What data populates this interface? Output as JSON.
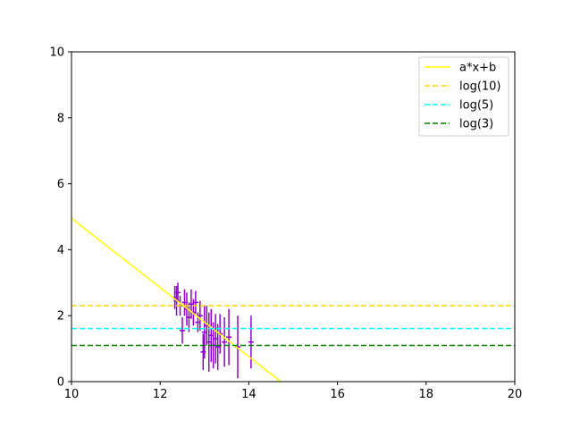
{
  "chart_data": {
    "type": "scatter",
    "title": "",
    "xlabel": "",
    "ylabel": "",
    "xlim": [
      10,
      20
    ],
    "ylim": [
      0,
      10
    ],
    "xticks": [
      10,
      12,
      14,
      16,
      18,
      20
    ],
    "yticks": [
      0,
      2,
      4,
      6,
      8,
      10
    ],
    "xtick_labels": [
      "10",
      "12",
      "14",
      "16",
      "18",
      "20"
    ],
    "ytick_labels": [
      "0",
      "2",
      "4",
      "6",
      "8",
      "10"
    ],
    "grid": false,
    "legend_position": "top-right",
    "series": [
      {
        "name": "a*x+b",
        "kind": "line",
        "style": "solid",
        "color": "#ffff00",
        "x": [
          10,
          14.72
        ],
        "y": [
          4.95,
          0
        ]
      },
      {
        "name": "log(10)",
        "kind": "hline",
        "style": "dashed",
        "color": "#ffd700",
        "y": 2.303
      },
      {
        "name": "log(5)",
        "kind": "hline",
        "style": "dashed",
        "color": "#00ffff",
        "y": 1.609
      },
      {
        "name": "log(3)",
        "kind": "hline",
        "style": "dashed",
        "color": "#008000",
        "y": 1.099
      }
    ],
    "errorbar_data": {
      "color": "#9400d3",
      "points": [
        {
          "x": 12.33,
          "y": 2.55,
          "err": 0.35
        },
        {
          "x": 12.37,
          "y": 2.45,
          "err": 0.45
        },
        {
          "x": 12.4,
          "y": 2.7,
          "err": 0.3
        },
        {
          "x": 12.45,
          "y": 2.3,
          "err": 0.3
        },
        {
          "x": 12.5,
          "y": 1.55,
          "err": 0.4
        },
        {
          "x": 12.55,
          "y": 2.4,
          "err": 0.4
        },
        {
          "x": 12.6,
          "y": 2.2,
          "err": 0.5
        },
        {
          "x": 12.65,
          "y": 1.95,
          "err": 0.45
        },
        {
          "x": 12.7,
          "y": 2.35,
          "err": 0.45
        },
        {
          "x": 12.75,
          "y": 2.1,
          "err": 0.4
        },
        {
          "x": 12.8,
          "y": 2.4,
          "err": 0.35
        },
        {
          "x": 12.85,
          "y": 1.8,
          "err": 0.3
        },
        {
          "x": 12.9,
          "y": 2.0,
          "err": 0.45
        },
        {
          "x": 12.97,
          "y": 0.9,
          "err": 0.55
        },
        {
          "x": 13.0,
          "y": 1.5,
          "err": 0.8
        },
        {
          "x": 13.05,
          "y": 1.7,
          "err": 0.6
        },
        {
          "x": 13.1,
          "y": 1.2,
          "err": 0.9
        },
        {
          "x": 13.15,
          "y": 1.4,
          "err": 0.8
        },
        {
          "x": 13.2,
          "y": 1.1,
          "err": 0.7
        },
        {
          "x": 13.25,
          "y": 1.3,
          "err": 0.75
        },
        {
          "x": 13.3,
          "y": 1.05,
          "err": 0.7
        },
        {
          "x": 13.35,
          "y": 1.45,
          "err": 0.6
        },
        {
          "x": 13.45,
          "y": 1.2,
          "err": 0.75
        },
        {
          "x": 13.55,
          "y": 1.35,
          "err": 0.85
        },
        {
          "x": 13.75,
          "y": 1.05,
          "err": 0.95
        },
        {
          "x": 14.05,
          "y": 1.2,
          "err": 0.8
        }
      ]
    }
  }
}
